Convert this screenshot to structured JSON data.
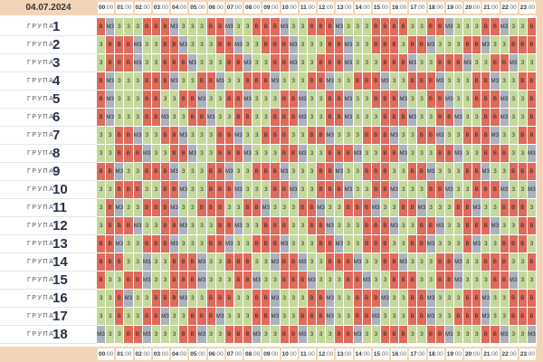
{
  "date": "04.07.2024",
  "hours": [
    "00",
    "01",
    "02",
    "03",
    "04",
    "05",
    "06",
    "07",
    "08",
    "09",
    "10",
    "11",
    "12",
    "13",
    "14",
    "15",
    "16",
    "17",
    "18",
    "19",
    "20",
    "21",
    "22",
    "23"
  ],
  "minutes": ":00",
  "group_label": "ГРУПА",
  "groups": [
    {
      "number": "1",
      "cells": [
        "В",
        "МЗ",
        "З",
        "З",
        "З",
        "В",
        "В",
        "В",
        "МЗ",
        "З",
        "З",
        "З",
        "В",
        "В",
        "МЗ",
        "З",
        "З",
        "В",
        "В",
        "В",
        "МЗ",
        "З",
        "З",
        "В",
        "В",
        "В",
        "МЗ",
        "З",
        "З",
        "З",
        "В",
        "В",
        "В",
        "В",
        "З",
        "З",
        "В",
        "В",
        "МЗ",
        "З",
        "З",
        "З",
        "В",
        "В",
        "МЗ",
        "З",
        "З",
        "В"
      ]
    },
    {
      "number": "2",
      "cells": [
        "З",
        "В",
        "В",
        "В",
        "МЗ",
        "З",
        "З",
        "В",
        "В",
        "МЗ",
        "З",
        "З",
        "З",
        "В",
        "В",
        "МЗ",
        "З",
        "З",
        "В",
        "В",
        "В",
        "МЗ",
        "З",
        "З",
        "З",
        "В",
        "В",
        "МЗ",
        "З",
        "З",
        "В",
        "В",
        "В",
        "З",
        "В",
        "В",
        "МЗ",
        "З",
        "З",
        "З",
        "В",
        "В",
        "МЗ",
        "З",
        "З",
        "В",
        "В",
        "В"
      ]
    },
    {
      "number": "3",
      "cells": [
        "З",
        "В",
        "В",
        "В",
        "МЗ",
        "З",
        "З",
        "В",
        "В",
        "В",
        "МЗ",
        "З",
        "З",
        "З",
        "В",
        "В",
        "МЗ",
        "З",
        "З",
        "В",
        "В",
        "МЗ",
        "З",
        "З",
        "В",
        "В",
        "В",
        "МЗ",
        "З",
        "З",
        "З",
        "В",
        "В",
        "В",
        "МЗ",
        "З",
        "З",
        "В",
        "В",
        "В",
        "МЗ",
        "З",
        "З",
        "В",
        "В",
        "МЗ",
        "З",
        "З"
      ]
    },
    {
      "number": "4",
      "cells": [
        "В",
        "МЗ",
        "З",
        "З",
        "З",
        "В",
        "В",
        "В",
        "МЗ",
        "З",
        "З",
        "В",
        "В",
        "МЗ",
        "З",
        "З",
        "В",
        "В",
        "В",
        "МЗ",
        "З",
        "З",
        "З",
        "В",
        "В",
        "МЗ",
        "З",
        "З",
        "В",
        "В",
        "В",
        "МЗ",
        "З",
        "З",
        "В",
        "В",
        "В",
        "МЗ",
        "З",
        "З",
        "З",
        "В",
        "В",
        "МЗ",
        "З",
        "З",
        "В",
        "В"
      ]
    },
    {
      "number": "5",
      "cells": [
        "В",
        "МЗ",
        "З",
        "З",
        "З",
        "В",
        "В",
        "З",
        "З",
        "В",
        "В",
        "МЗ",
        "З",
        "З",
        "В",
        "В",
        "МЗ",
        "З",
        "З",
        "З",
        "В",
        "В",
        "МЗ",
        "З",
        "З",
        "В",
        "В",
        "МЗ",
        "З",
        "З",
        "В",
        "В",
        "В",
        "МЗ",
        "З",
        "З",
        "В",
        "В",
        "МЗ",
        "З",
        "З",
        "В",
        "В",
        "В",
        "МЗ",
        "З",
        "З",
        "В"
      ]
    },
    {
      "number": "6",
      "cells": [
        "В",
        "МЗ",
        "З",
        "З",
        "З",
        "В",
        "В",
        "МЗ",
        "З",
        "З",
        "В",
        "В",
        "МЗ",
        "З",
        "З",
        "В",
        "В",
        "З",
        "З",
        "В",
        "В",
        "В",
        "МЗ",
        "З",
        "З",
        "В",
        "В",
        "МЗ",
        "З",
        "З",
        "З",
        "В",
        "В",
        "В",
        "МЗ",
        "З",
        "З",
        "В",
        "В",
        "МЗ",
        "З",
        "З",
        "В",
        "В",
        "МЗ",
        "З",
        "З",
        "В"
      ]
    },
    {
      "number": "7",
      "cells": [
        "З",
        "З",
        "В",
        "В",
        "МЗ",
        "З",
        "З",
        "В",
        "В",
        "МЗ",
        "З",
        "З",
        "З",
        "В",
        "В",
        "МЗ",
        "З",
        "З",
        "В",
        "В",
        "В",
        "З",
        "З",
        "В",
        "В",
        "МЗ",
        "З",
        "З",
        "З",
        "В",
        "В",
        "В",
        "МЗ",
        "З",
        "З",
        "В",
        "В",
        "МЗ",
        "З",
        "З",
        "В",
        "В",
        "В",
        "МЗ",
        "З",
        "З",
        "В",
        "В"
      ]
    },
    {
      "number": "8",
      "cells": [
        "З",
        "З",
        "В",
        "В",
        "В",
        "МЗ",
        "З",
        "З",
        "В",
        "В",
        "МЗ",
        "З",
        "З",
        "В",
        "В",
        "В",
        "МЗ",
        "З",
        "З",
        "З",
        "В",
        "В",
        "МЗ",
        "З",
        "З",
        "В",
        "В",
        "В",
        "МЗ",
        "З",
        "З",
        "В",
        "В",
        "МЗ",
        "З",
        "З",
        "З",
        "В",
        "В",
        "МЗ",
        "З",
        "З",
        "В",
        "В",
        "В",
        "З",
        "З",
        "МЗ"
      ]
    },
    {
      "number": "9",
      "cells": [
        "В",
        "В",
        "МЗ",
        "З",
        "З",
        "В",
        "В",
        "В",
        "МЗ",
        "З",
        "З",
        "З",
        "В",
        "В",
        "МЗ",
        "З",
        "З",
        "В",
        "В",
        "В",
        "МЗ",
        "З",
        "З",
        "З",
        "В",
        "В",
        "МЗ",
        "З",
        "З",
        "В",
        "В",
        "В",
        "З",
        "З",
        "В",
        "В",
        "МЗ",
        "З",
        "З",
        "З",
        "В",
        "В",
        "МЗ",
        "З",
        "З",
        "В",
        "В",
        "В"
      ]
    },
    {
      "number": "10",
      "cells": [
        "З",
        "З",
        "В",
        "В",
        "В",
        "З",
        "З",
        "В",
        "В",
        "МЗ",
        "З",
        "З",
        "В",
        "В",
        "В",
        "МЗ",
        "З",
        "З",
        "З",
        "В",
        "В",
        "МЗ",
        "З",
        "З",
        "В",
        "В",
        "В",
        "МЗ",
        "З",
        "З",
        "В",
        "В",
        "МЗ",
        "З",
        "З",
        "З",
        "В",
        "В",
        "МЗ",
        "З",
        "З",
        "В",
        "В",
        "В",
        "МЗ",
        "З",
        "З",
        "МЗ"
      ]
    },
    {
      "number": "11",
      "cells": [
        "З",
        "В",
        "МЗ",
        "З",
        "З",
        "В",
        "В",
        "В",
        "МЗ",
        "З",
        "З",
        "В",
        "В",
        "В",
        "З",
        "З",
        "В",
        "В",
        "МЗ",
        "З",
        "З",
        "З",
        "В",
        "В",
        "МЗ",
        "З",
        "З",
        "В",
        "В",
        "В",
        "МЗ",
        "З",
        "З",
        "В",
        "В",
        "МЗ",
        "З",
        "З",
        "З",
        "В",
        "В",
        "МЗ",
        "З",
        "З",
        "В",
        "В",
        "В",
        "З"
      ]
    },
    {
      "number": "12",
      "cells": [
        "З",
        "В",
        "В",
        "В",
        "МЗ",
        "З",
        "З",
        "В",
        "В",
        "МЗ",
        "З",
        "З",
        "З",
        "В",
        "В",
        "МЗ",
        "З",
        "З",
        "В",
        "В",
        "В",
        "З",
        "З",
        "В",
        "В",
        "МЗ",
        "З",
        "З",
        "З",
        "В",
        "В",
        "В",
        "МЗ",
        "З",
        "З",
        "В",
        "В",
        "МЗ",
        "З",
        "З",
        "В",
        "В",
        "В",
        "МЗ",
        "З",
        "З",
        "В",
        "В"
      ]
    },
    {
      "number": "13",
      "cells": [
        "В",
        "В",
        "МЗ",
        "З",
        "З",
        "В",
        "В",
        "В",
        "МЗ",
        "З",
        "З",
        "З",
        "В",
        "В",
        "МЗ",
        "З",
        "З",
        "В",
        "В",
        "В",
        "МЗ",
        "З",
        "З",
        "З",
        "В",
        "В",
        "МЗ",
        "З",
        "З",
        "В",
        "В",
        "В",
        "З",
        "З",
        "В",
        "В",
        "МЗ",
        "З",
        "З",
        "З",
        "В",
        "МЗ",
        "З",
        "З",
        "В",
        "В",
        "В",
        "З"
      ]
    },
    {
      "number": "14",
      "cells": [
        "В",
        "В",
        "В",
        "З",
        "З",
        "МЗ",
        "З",
        "З",
        "В",
        "В",
        "В",
        "МЗ",
        "З",
        "З",
        "В",
        "В",
        "В",
        "З",
        "З",
        "МЗ",
        "В",
        "В",
        "МЗ",
        "З",
        "З",
        "В",
        "В",
        "В",
        "МЗ",
        "З",
        "З",
        "В",
        "В",
        "МЗ",
        "З",
        "З",
        "З",
        "В",
        "В",
        "МЗ",
        "З",
        "З",
        "В",
        "В",
        "В",
        "З",
        "З",
        "В"
      ]
    },
    {
      "number": "15",
      "cells": [
        "В",
        "З",
        "З",
        "В",
        "В",
        "МЗ",
        "З",
        "З",
        "В",
        "В",
        "В",
        "МЗ",
        "З",
        "З",
        "З",
        "В",
        "В",
        "МЗ",
        "З",
        "З",
        "В",
        "В",
        "В",
        "МЗ",
        "З",
        "З",
        "З",
        "В",
        "В",
        "МЗ",
        "З",
        "З",
        "В",
        "В",
        "В",
        "З",
        "З",
        "В",
        "В",
        "МЗ",
        "З",
        "З",
        "З",
        "В",
        "В",
        "МЗ",
        "З",
        "З"
      ]
    },
    {
      "number": "16",
      "cells": [
        "З",
        "З",
        "В",
        "МЗ",
        "З",
        "З",
        "В",
        "В",
        "В",
        "МЗ",
        "З",
        "З",
        "В",
        "В",
        "В",
        "З",
        "З",
        "В",
        "В",
        "МЗ",
        "З",
        "З",
        "З",
        "В",
        "В",
        "МЗ",
        "З",
        "З",
        "В",
        "В",
        "В",
        "МЗ",
        "З",
        "З",
        "В",
        "В",
        "МЗ",
        "З",
        "З",
        "З",
        "В",
        "В",
        "МЗ",
        "З",
        "З",
        "В",
        "В",
        "В"
      ]
    },
    {
      "number": "17",
      "cells": [
        "З",
        "З",
        "В",
        "З",
        "З",
        "В",
        "В",
        "МЗ",
        "З",
        "З",
        "В",
        "В",
        "В",
        "МЗ",
        "З",
        "З",
        "З",
        "В",
        "В",
        "МЗ",
        "З",
        "З",
        "В",
        "В",
        "В",
        "МЗ",
        "З",
        "З",
        "В",
        "В",
        "МЗ",
        "З",
        "З",
        "З",
        "В",
        "В",
        "МЗ",
        "З",
        "З",
        "В",
        "В",
        "В",
        "МЗ",
        "З",
        "З",
        "В",
        "В",
        "В"
      ]
    },
    {
      "number": "18",
      "cells": [
        "МЗ",
        "З",
        "З",
        "В",
        "В",
        "МЗ",
        "З",
        "З",
        "З",
        "В",
        "В",
        "МЗ",
        "З",
        "З",
        "В",
        "В",
        "В",
        "МЗ",
        "З",
        "З",
        "В",
        "В",
        "МЗ",
        "З",
        "З",
        "З",
        "В",
        "В",
        "МЗ",
        "З",
        "З",
        "В",
        "В",
        "В",
        "З",
        "З",
        "В",
        "В",
        "МЗ",
        "З",
        "З",
        "З",
        "В",
        "В",
        "МЗ",
        "З",
        "З",
        "МЗ"
      ]
    }
  ],
  "legend_colors": {
    "В": "#de6b5b",
    "З": "#c5d89b",
    "МЗ": "#aab2bd"
  }
}
